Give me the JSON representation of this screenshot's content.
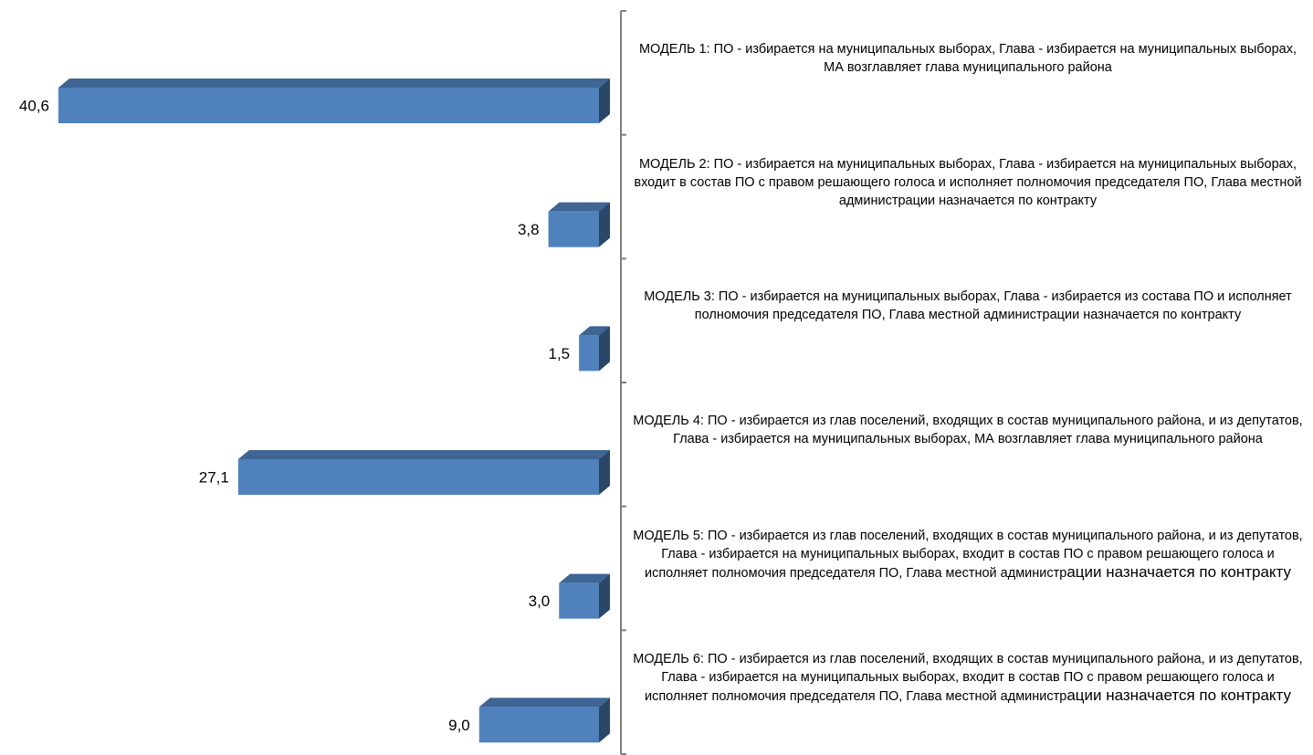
{
  "chart_data": {
    "type": "bar",
    "orientation": "horizontal",
    "direction": "reversed",
    "style": "3d",
    "bar_color": "#4F81BD",
    "axis_color": "#7f7f7f",
    "categories": [
      {
        "main": "МОДЕЛЬ 1: ПО - избирается на муниципальных выборах, Глава - избирается на муниципальных выборах, МА возглавляет глава муниципального района",
        "tail": ""
      },
      {
        "main": "МОДЕЛЬ 2: ПО - избирается на муниципальных выборах, Глава - избирается на муниципальных выборах, входит в состав ПО с правом решающего голоса и исполняет полномочия председателя ПО, Глава местной администрации назначается по контракту",
        "tail": ""
      },
      {
        "main": "МОДЕЛЬ 3: ПО - избирается на муниципальных выборах, Глава - избирается из состава ПО и исполняет полномочия председателя ПО, Глава местной администрации назначается по контракту",
        "tail": ""
      },
      {
        "main": "МОДЕЛЬ 4: ПО - избирается из глав поселений, входящих в состав муниципального района, и из депутатов, Глава - избирается на муниципальных выборах, МА возглавляет глава муниципального района",
        "tail": ""
      },
      {
        "main": "МОДЕЛЬ 5: ПО - избирается из глав поселений, входящих в состав муниципального района, и из депутатов, Глава - избирается на муниципальных выборах, входит в состав ПО с правом решающего голоса и исполняет полномочия председателя ПО, Глава местной администр",
        "tail": "ации назначается по контракту"
      },
      {
        "main": "МОДЕЛЬ 6: ПО - избирается из глав поселений, входящих в состав муниципального района, и из депутатов, Глава - избирается на муниципальных выборах, входит в состав ПО с правом решающего голоса и исполняет полномочия председателя ПО, Глава местной администр",
        "tail": "ации назначается по контракту"
      }
    ],
    "values": [
      40.6,
      3.8,
      1.5,
      27.1,
      3.0,
      9.0
    ],
    "value_labels": [
      "40,6",
      "3,8",
      "1,5",
      "27,1",
      "3,0",
      "9,0"
    ],
    "xlim": [
      0,
      40.6
    ],
    "title": "",
    "xlabel": "",
    "ylabel": "",
    "grid": false,
    "legend": "none"
  }
}
